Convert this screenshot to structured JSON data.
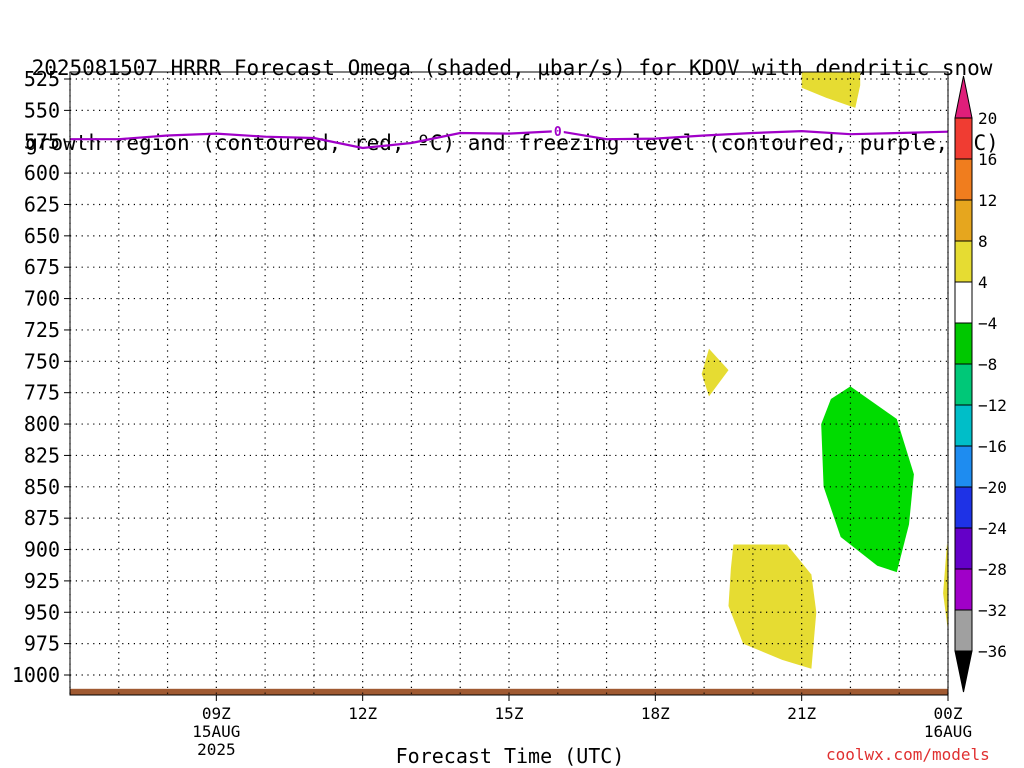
{
  "title_lines": [
    "2025081507 HRRR Forecast Omega (shaded, μbar/s) for KDOV with dendritic snow",
    "growth region (contoured, red, ºC) and freezing level (contoured, purple, ºC)"
  ],
  "credit": "coolwx.com/models",
  "chart_data": {
    "type": "time-height contour",
    "xlabel": "Forecast Time (UTC)",
    "x_range_hours": [
      6,
      24
    ],
    "x_ticks": [
      {
        "hour": 9,
        "lines": [
          "09Z",
          "15AUG",
          "2025"
        ]
      },
      {
        "hour": 12,
        "lines": [
          "12Z"
        ]
      },
      {
        "hour": 15,
        "lines": [
          "15Z"
        ]
      },
      {
        "hour": 18,
        "lines": [
          "18Z"
        ]
      },
      {
        "hour": 21,
        "lines": [
          "21Z"
        ]
      },
      {
        "hour": 24,
        "lines": [
          "00Z",
          "16AUG"
        ]
      }
    ],
    "y_ticks_hpa": [
      525,
      550,
      575,
      600,
      625,
      650,
      675,
      700,
      725,
      750,
      775,
      800,
      825,
      850,
      875,
      900,
      925,
      950,
      975,
      1000
    ],
    "y_range_hpa": [
      520,
      1030
    ],
    "grid": true,
    "colorbar": {
      "position": "right",
      "labels": [
        "20",
        "16",
        "12",
        "8",
        "4",
        "-4",
        "-8",
        "-12",
        "-16",
        "-20",
        "-24",
        "-28",
        "-32",
        "-36"
      ],
      "colors": [
        "#e01e7a",
        "#f03c32",
        "#f07d1e",
        "#e6a61e",
        "#e6dc32",
        "#ffffff",
        "#00c800",
        "#00c878",
        "#00bec8",
        "#1e8cf0",
        "#1e32e6",
        "#6400c8",
        "#a000c8",
        "#a0a0a0",
        "#000000"
      ],
      "units": "μbar/s"
    },
    "freezing_level": {
      "color": "#a000c8",
      "label": "0",
      "label_hour": 16,
      "points": [
        [
          6,
          573
        ],
        [
          7,
          573
        ],
        [
          8,
          570
        ],
        [
          9,
          568.5
        ],
        [
          10,
          571
        ],
        [
          11,
          572
        ],
        [
          12,
          580
        ],
        [
          13,
          576
        ],
        [
          14,
          568
        ],
        [
          15,
          568.5
        ],
        [
          16,
          566.5
        ],
        [
          17,
          573
        ],
        [
          18,
          572.5
        ],
        [
          19,
          570
        ],
        [
          20,
          568
        ],
        [
          21,
          566.5
        ],
        [
          22,
          569
        ],
        [
          23,
          568
        ],
        [
          24,
          567
        ],
        [
          24.95,
          566
        ]
      ]
    },
    "omega_regions": [
      {
        "value_range": "4 to 8",
        "color": "#e6dc32",
        "points": [
          [
            21,
            518
          ],
          [
            22.2,
            518
          ],
          [
            22.2,
            530
          ],
          [
            22.1,
            548
          ],
          [
            21.5,
            540
          ],
          [
            21,
            532
          ]
        ]
      },
      {
        "value_range": "4 to 8",
        "color": "#e6dc32",
        "points": [
          [
            19.1,
            740
          ],
          [
            19.5,
            757
          ],
          [
            19.1,
            778
          ],
          [
            18.95,
            760
          ]
        ]
      },
      {
        "value_range": "4 to 8",
        "color": "#e6dc32",
        "points": [
          [
            19.6,
            896
          ],
          [
            20.7,
            896
          ],
          [
            21.2,
            920
          ],
          [
            21.3,
            950
          ],
          [
            21.2,
            995
          ],
          [
            20.6,
            988
          ],
          [
            19.8,
            975
          ],
          [
            19.5,
            945
          ],
          [
            19.55,
            915
          ]
        ]
      },
      {
        "value_range": "4 to 8",
        "color": "#e6dc32",
        "points": [
          [
            23.98,
            895
          ],
          [
            24.1,
            935
          ],
          [
            24.0,
            965
          ],
          [
            23.9,
            935
          ]
        ]
      },
      {
        "value_range": "-4 to -8",
        "color": "#00dc00",
        "points": [
          [
            22.0,
            770
          ],
          [
            22.95,
            796
          ],
          [
            23.3,
            840
          ],
          [
            23.2,
            880
          ],
          [
            22.95,
            918
          ],
          [
            22.55,
            913
          ],
          [
            21.8,
            890
          ],
          [
            21.45,
            850
          ],
          [
            21.4,
            800
          ],
          [
            21.6,
            780
          ]
        ]
      }
    ],
    "surface_band": {
      "color": "#a05a32",
      "top_hpa": 1011,
      "bottom_hpa": 1017
    }
  }
}
